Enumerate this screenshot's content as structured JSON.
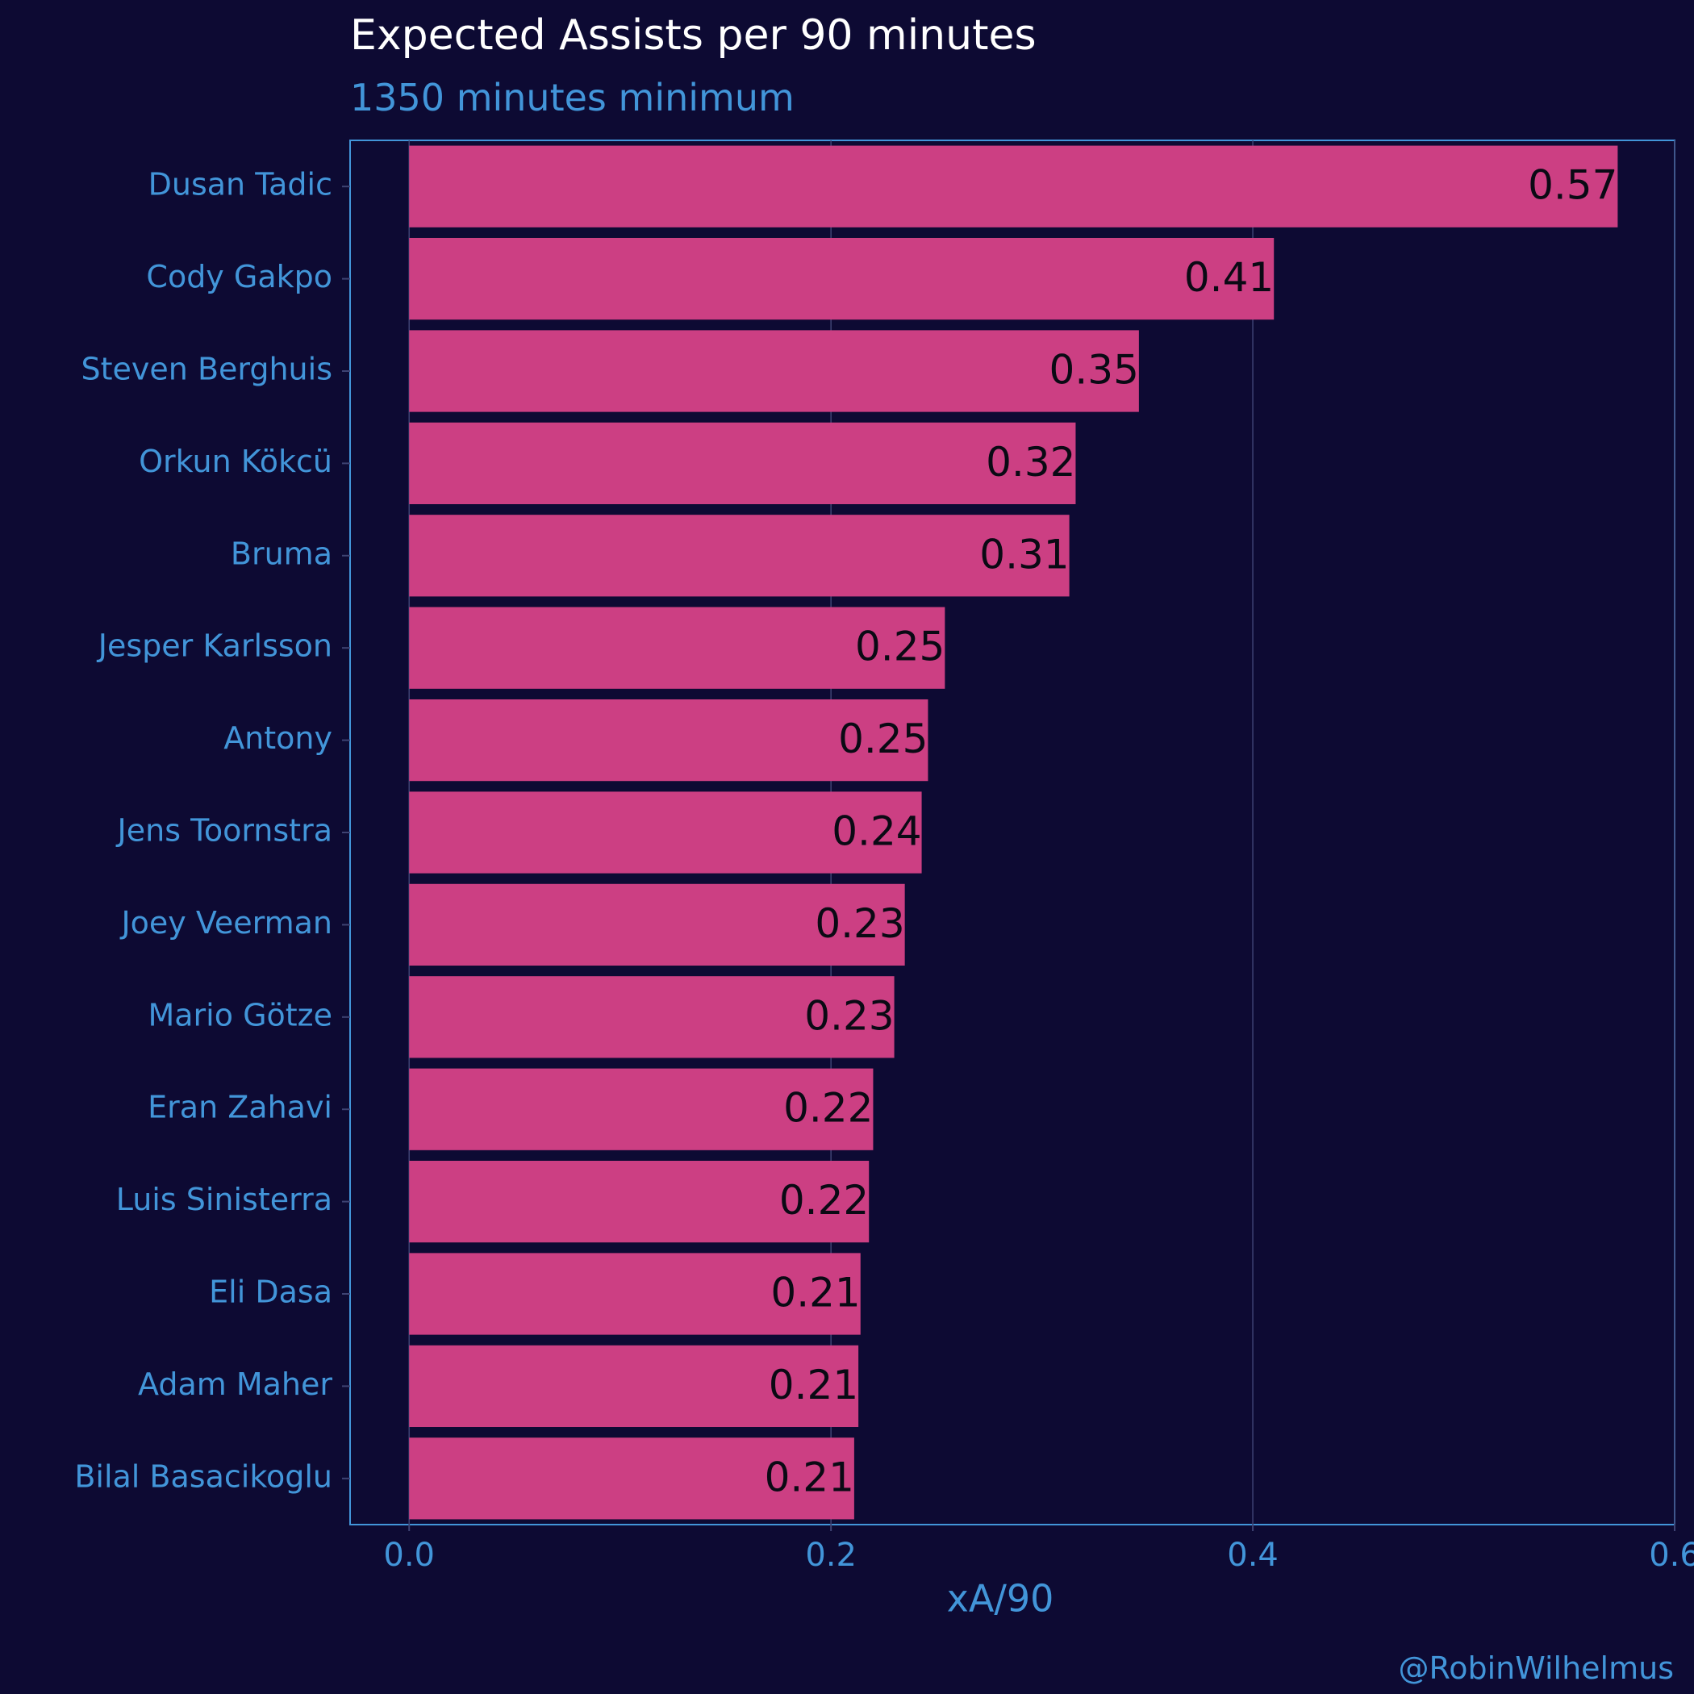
{
  "colors": {
    "background": "#0d0a33",
    "bar": "#cc3f83",
    "accent": "#4295d9",
    "title": "#ffffff",
    "value_label": "#0a0a14",
    "grid": "#3e4373"
  },
  "caption": "@RobinWilhelmus",
  "chart_data": {
    "type": "bar",
    "orientation": "horizontal",
    "title": "Expected Assists per 90 minutes",
    "subtitle": "1350 minutes minimum",
    "xlabel": "xA/90",
    "ylabel": "",
    "xlim": [
      -0.028,
      0.6
    ],
    "xticks": [
      "0.0",
      "0.2",
      "0.4",
      "0.6"
    ],
    "grid": true,
    "categories": [
      "Dusan Tadic",
      "Cody Gakpo",
      "Steven Berghuis",
      "Orkun Kökcü",
      "Bruma",
      "Jesper Karlsson",
      "Antony",
      "Jens Toornstra",
      "Joey Veerman",
      "Mario Götze",
      "Eran Zahavi",
      "Luis Sinisterra",
      "Eli Dasa",
      "Adam Maher",
      "Bilal Basacikoglu"
    ],
    "values": [
      0.573,
      0.41,
      0.346,
      0.316,
      0.313,
      0.254,
      0.246,
      0.243,
      0.235,
      0.23,
      0.22,
      0.218,
      0.214,
      0.213,
      0.211
    ],
    "labels": [
      "0.57",
      "0.41",
      "0.35",
      "0.32",
      "0.31",
      "0.25",
      "0.25",
      "0.24",
      "0.23",
      "0.23",
      "0.22",
      "0.22",
      "0.21",
      "0.21",
      "0.21"
    ]
  }
}
